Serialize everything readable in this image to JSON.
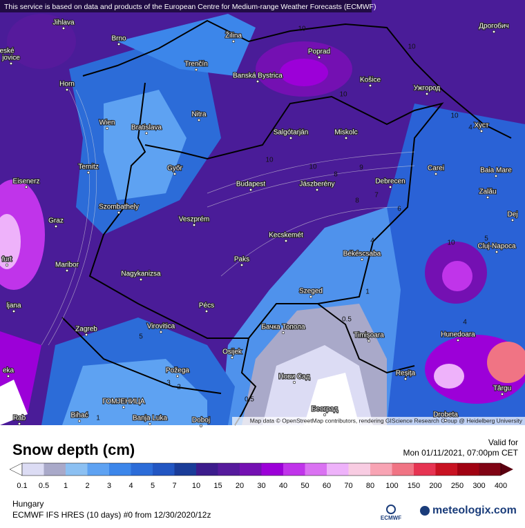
{
  "header": "This service is based on data and products of the European Centre for Medium-range Weather Forecasts (ECMWF)",
  "attribution": "Map data © OpenStreetMap contributors, rendering GIScience Research Group @ Heidelberg University",
  "cities": [
    "Jihlava",
    "Brno",
    "Žilina",
    "Poprad",
    "Banská Bystrica",
    "Košice",
    "Ужгород",
    "Дрогобич",
    "Horn",
    "Trenčín",
    "Nitra",
    "Wien",
    "Bratislava",
    "Salgótarján",
    "Miskolc",
    "Хуст",
    "Ternitz",
    "Győr",
    "Carei",
    "Baia Mare",
    "Eisenerz",
    "Budapest",
    "Jászberény",
    "Debrecen",
    "Zalău",
    "Szombathely",
    "Graz",
    "Veszprém",
    "Dej",
    "Kecskemét",
    "Cluj-Napoca",
    "Békéscsaba",
    "Paks",
    "Maribor",
    "Nagykanizsa",
    "Szeged",
    "Pécs",
    "Zagreb",
    "Virovitica",
    "Бачка Топола",
    "Timișoara",
    "Hunedoara",
    "Osijek",
    "Požega",
    "Нови Сад",
    "Reșița",
    "ГОМЈЕНИЦА",
    "Târgu",
    "Bihać",
    "Banja Luka",
    "Doboj",
    "Београд",
    "Drobeta",
    "eské",
    "jovice",
    "ljana",
    "furt",
    "eka",
    "Rab"
  ],
  "contour_labels": [
    "10",
    "10",
    "10",
    "10",
    "10",
    "10",
    "9",
    "8",
    "8",
    "7",
    "6",
    "4",
    "5",
    "10",
    "1",
    "0.5",
    "4",
    "5",
    "3",
    "2",
    "1",
    "0.5",
    "4"
  ],
  "legend": {
    "title": "Snow depth (cm)",
    "valid_label": "Valid for",
    "valid_time": "Mon 01/11/2021, 07:00pm CET",
    "levels": [
      0.1,
      0.5,
      1,
      2,
      3,
      4,
      5,
      7,
      10,
      15,
      20,
      30,
      40,
      50,
      60,
      70,
      80,
      100,
      150,
      200,
      250,
      300,
      400
    ],
    "under_color": "#ffffff",
    "colors": [
      "#dcdcf4",
      "#a9a9c9",
      "#8cc0f2",
      "#5ea2f2",
      "#3c86ea",
      "#2c6cd8",
      "#2256c2",
      "#1a3c98",
      "#3c1c8c",
      "#561a9c",
      "#7410b2",
      "#9c00d8",
      "#c034ea",
      "#da72f2",
      "#eeb2fa",
      "#f8cce2",
      "#f8a4b4",
      "#f07484",
      "#e63452",
      "#c81222",
      "#a00212",
      "#800414"
    ],
    "over_color": "#5a0010"
  },
  "footer": {
    "region": "Hungary",
    "model": "ECMWF IFS HRES (10 days) #0 from  12/30/2020/12z",
    "ecmwf": "ECMWF",
    "brand": "meteologix.com"
  }
}
